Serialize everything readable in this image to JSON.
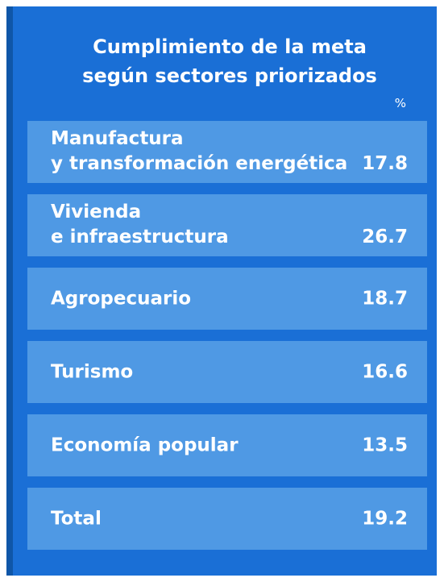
{
  "chart_data": {
    "type": "table",
    "title_lines": [
      "Cumplimiento de la meta",
      "según sectores priorizados"
    ],
    "unit": "%",
    "rows": [
      {
        "label_lines": [
          "Manufactura",
          "y transformación energética"
        ],
        "value": "17.8"
      },
      {
        "label_lines": [
          "Vivienda",
          "e infraestructura"
        ],
        "value": "26.7"
      },
      {
        "label_lines": [
          "Agropecuario"
        ],
        "value": "18.7"
      },
      {
        "label_lines": [
          "Turismo"
        ],
        "value": "16.6"
      },
      {
        "label_lines": [
          "Economía popular"
        ],
        "value": "13.5"
      },
      {
        "label_lines": [
          "Total"
        ],
        "value": "19.2"
      }
    ]
  },
  "colors": {
    "background": "#1a6fd6",
    "stripe": "#0f56a8",
    "row": "#4f99e4",
    "text": "#ffffff"
  }
}
